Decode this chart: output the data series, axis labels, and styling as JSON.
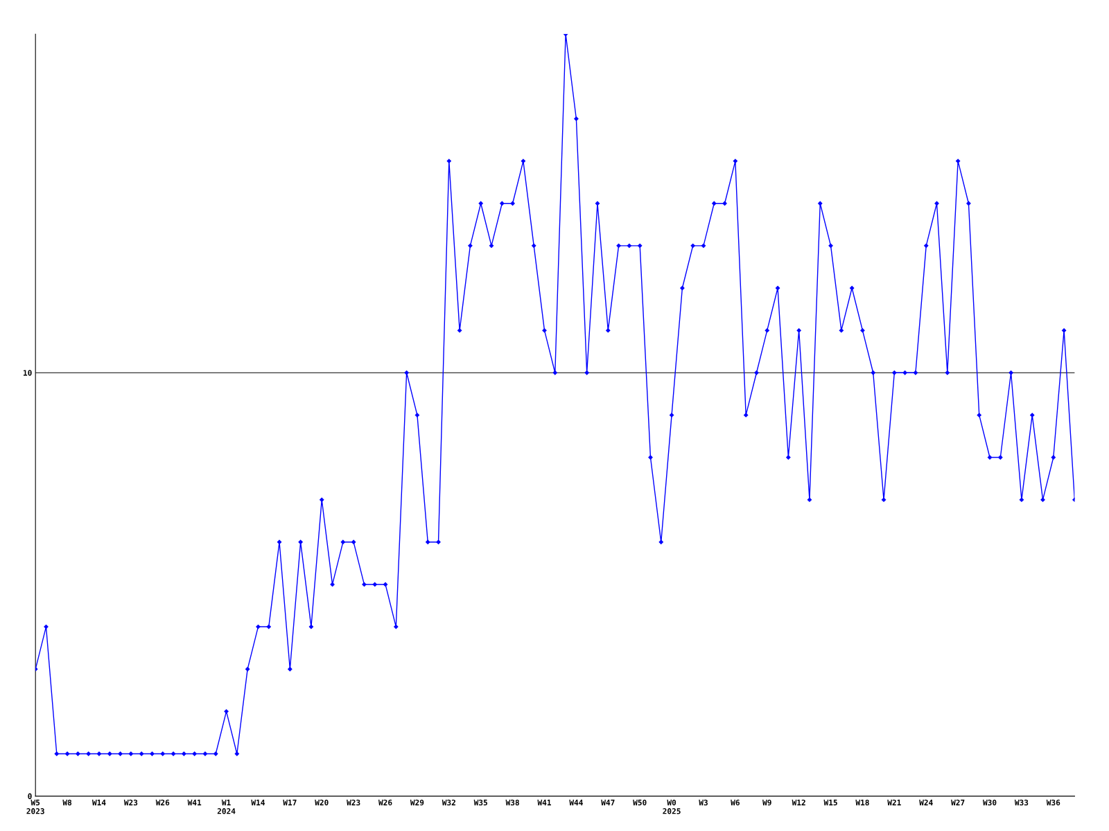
{
  "chart_data": {
    "type": "line",
    "categories": [
      "W5\n2023",
      null,
      null,
      "W8",
      null,
      null,
      "W14",
      null,
      null,
      "W23",
      null,
      null,
      "W26",
      null,
      null,
      "W41",
      null,
      null,
      "W1\n2024",
      null,
      null,
      "W14",
      null,
      null,
      "W17",
      null,
      null,
      "W20",
      null,
      null,
      "W23",
      null,
      null,
      "W26",
      null,
      null,
      "W29",
      null,
      null,
      "W32",
      null,
      null,
      "W35",
      null,
      null,
      "W38",
      null,
      null,
      "W41",
      null,
      null,
      "W44",
      null,
      null,
      "W47",
      null,
      null,
      "W50",
      null,
      null,
      "W0\n2025",
      null,
      null,
      "W3",
      null,
      null,
      "W6",
      null,
      null,
      "W9",
      null,
      null,
      "W12",
      null,
      null,
      "W15",
      null,
      null,
      "W18",
      null,
      null,
      "W21",
      null,
      null,
      "W24",
      null,
      null,
      "W27",
      null,
      null,
      "W30",
      null,
      null,
      "W33",
      null,
      null,
      "W36",
      null,
      null
    ],
    "series": [
      {
        "color": "#0000ff",
        "values": [
          3,
          4,
          1,
          1,
          1,
          1,
          1,
          1,
          1,
          1,
          1,
          1,
          1,
          1,
          1,
          1,
          1,
          1,
          2,
          1,
          3,
          4,
          4,
          6,
          3,
          6,
          4,
          7,
          5,
          6,
          6,
          5,
          5,
          5,
          4,
          10,
          9,
          6,
          6,
          15,
          11,
          13,
          14,
          13,
          14,
          14,
          15,
          13,
          11,
          10,
          18,
          16,
          10,
          14,
          11,
          13,
          13,
          13,
          8,
          6,
          9,
          12,
          13,
          13,
          14,
          14,
          15,
          9,
          10,
          11,
          12,
          8,
          11,
          7,
          14,
          13,
          11,
          12,
          11,
          10,
          7,
          10,
          10,
          10,
          13,
          14,
          10,
          15,
          14,
          9,
          8,
          8,
          10,
          7,
          9,
          7,
          8,
          11,
          7
        ]
      }
    ],
    "ylim": [
      0,
      18
    ],
    "yticks": [
      0,
      10
    ],
    "grid": "y",
    "marker": "diamond",
    "line_style": "solid"
  }
}
